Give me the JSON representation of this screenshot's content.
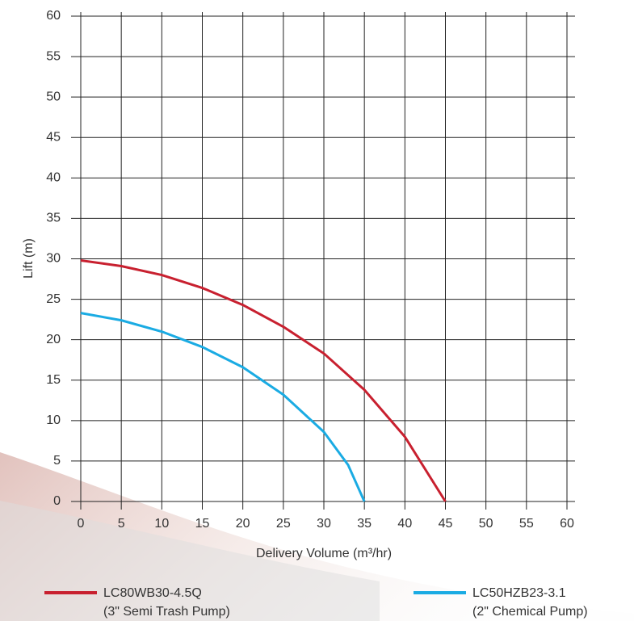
{
  "chart_data": {
    "type": "line",
    "x_label": "Delivery Volume (m³/hr)",
    "y_label": "Lift (m)",
    "xlim": [
      0,
      60
    ],
    "xticks": [
      0,
      5,
      10,
      15,
      20,
      25,
      30,
      35,
      40,
      45,
      50,
      55,
      60
    ],
    "ylim": [
      0,
      60
    ],
    "yticks": [
      0,
      5,
      10,
      15,
      20,
      25,
      30,
      35,
      40,
      45,
      50,
      55,
      60
    ],
    "grid": true,
    "legend": "bottom",
    "series": [
      {
        "name": "LC80WB30-4.5Q",
        "note": "(3\" Semi Trash Pump)",
        "color": "#c8202f",
        "x": [
          0,
          5,
          10,
          15,
          20,
          25,
          30,
          35,
          40,
          45
        ],
        "values": [
          29.8,
          29.1,
          28,
          26.4,
          24.3,
          21.6,
          18.3,
          13.8,
          8,
          0
        ]
      },
      {
        "name": "LC50HZB23-3.1",
        "note": "(2\" Chemical Pump)",
        "color": "#1aabe3",
        "x": [
          0,
          5,
          10,
          15,
          20,
          25,
          30,
          33,
          35
        ],
        "values": [
          23.3,
          22.4,
          21,
          19.1,
          16.6,
          13.2,
          8.6,
          4.5,
          0
        ]
      }
    ]
  }
}
